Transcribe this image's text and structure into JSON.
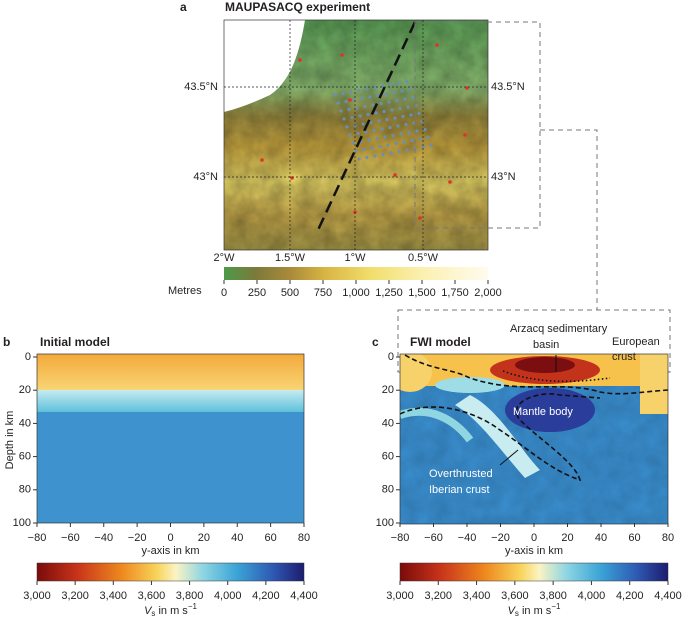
{
  "panel_a": {
    "label": "a",
    "title": "MAUPASACQ experiment",
    "lat_labels_left": [
      "43.5°N",
      "43°N"
    ],
    "lat_labels_right": [
      "43.5°N",
      "43°N"
    ],
    "lon_labels": [
      "2°W",
      "1.5°W",
      "1°W",
      "0.5°W"
    ],
    "colorbar_label": "Metres",
    "colorbar_ticks": [
      "0",
      "250",
      "500",
      "750",
      "1,000",
      "1,250",
      "1,500",
      "1,750",
      "2,000"
    ]
  },
  "panel_b": {
    "label": "b",
    "title": "Initial model",
    "y_axis_label": "Depth in km",
    "y_ticks": [
      "0",
      "20",
      "40",
      "60",
      "80",
      "100"
    ],
    "x_ticks": [
      "−80",
      "−60",
      "−40",
      "−20",
      "0",
      "20",
      "40",
      "60",
      "80"
    ],
    "x_axis_label": "y-axis in km",
    "colorbar_ticks": [
      "3,000",
      "3,200",
      "3,400",
      "3,600",
      "3,800",
      "4,000",
      "4,200",
      "4,400"
    ],
    "colorbar_label": {
      "symbol": "V",
      "subscript": "s",
      "unit": " in m s",
      "exponent": "−1"
    }
  },
  "panel_c": {
    "label": "c",
    "title": "FWI model",
    "y_ticks": [
      "0",
      "20",
      "40",
      "60",
      "80",
      "100"
    ],
    "x_ticks": [
      "−80",
      "−60",
      "−40",
      "−20",
      "0",
      "20",
      "40",
      "60",
      "80"
    ],
    "x_axis_label": "y-axis in km",
    "annotations": [
      "Arzacq sedimentary",
      "basin",
      "European",
      "crust",
      "Mantle body",
      "Overthrusted",
      "Iberian crust"
    ],
    "colorbar_ticks": [
      "3,000",
      "3,200",
      "3,400",
      "3,600",
      "3,800",
      "4,000",
      "4,200",
      "4,400"
    ],
    "colorbar_label": {
      "symbol": "V",
      "subscript": "s",
      "unit": " in m s",
      "exponent": "−1"
    }
  }
}
